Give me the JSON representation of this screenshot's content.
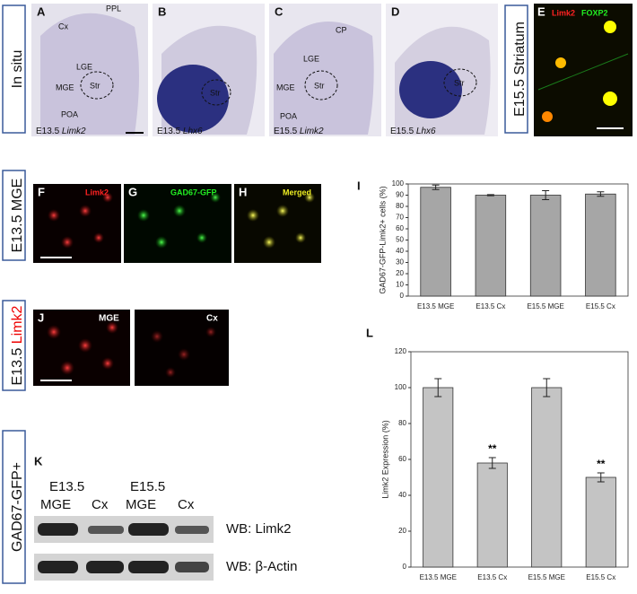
{
  "row_labels": {
    "in_situ": "In situ",
    "striatum": "E15.5 Striatum",
    "mge": "E13.5 MGE",
    "limk2_stage": "E13.5",
    "limk2_gene": "Limk2",
    "gfp": "GAD67-GFP+"
  },
  "panels": {
    "A": {
      "letter": "A",
      "labels": [
        "Cx",
        "PPL",
        "LGE",
        "MGE",
        "Str",
        "POA"
      ],
      "stage": "E13.5",
      "gene": "Limk2"
    },
    "B": {
      "letter": "B",
      "labels": [
        "Str"
      ],
      "stage": "E13.5",
      "gene": "Lhx6"
    },
    "C": {
      "letter": "C",
      "labels": [
        "CP",
        "LGE",
        "MGE",
        "Str",
        "POA"
      ],
      "stage": "E15.5",
      "gene": "Limk2"
    },
    "D": {
      "letter": "D",
      "labels": [
        "Str"
      ],
      "stage": "E15.5",
      "gene": "Lhx6"
    },
    "E": {
      "letter": "E",
      "labels": [
        "Limk2",
        "FOXP2"
      ]
    },
    "F": {
      "letter": "F",
      "labels": [
        "Limk2"
      ]
    },
    "G": {
      "letter": "G",
      "labels": [
        "GAD67-GFP"
      ]
    },
    "H": {
      "letter": "H",
      "labels": [
        "Merged"
      ]
    },
    "I": {
      "letter": "I"
    },
    "J": {
      "letter": "J",
      "labels": [
        "MGE",
        "Cx"
      ]
    },
    "K": {
      "letter": "K",
      "stages": [
        "E13.5",
        "E15.5"
      ],
      "lanes": [
        "MGE",
        "Cx",
        "MGE",
        "Cx"
      ],
      "blots": [
        "WB: Limk2",
        "WB: β-Actin"
      ]
    },
    "L": {
      "letter": "L"
    }
  },
  "chart_data": [
    {
      "type": "bar",
      "y_label": "GAD67-GFP-Limk2+ cells (%)",
      "categories": [
        "E13.5 MGE",
        "E13.5 Cx",
        "E15.5 MGE",
        "E15.5 Cx"
      ],
      "values": [
        97,
        90,
        90,
        91
      ],
      "errors": [
        2,
        0.5,
        4,
        2
      ],
      "color": "#a6a6a6",
      "ylim": [
        0,
        100
      ],
      "yticks": [
        0,
        10,
        20,
        30,
        40,
        50,
        60,
        70,
        80,
        90,
        100
      ]
    },
    {
      "type": "bar",
      "y_label": "Limk2 Expression (%)",
      "categories": [
        "E13.5 MGE",
        "E13.5 Cx",
        "E15.5 MGE",
        "E15.5 Cx"
      ],
      "values": [
        100,
        58,
        100,
        50
      ],
      "errors": [
        5,
        3,
        5,
        2.5
      ],
      "significance": [
        null,
        "**",
        null,
        "**"
      ],
      "color": "#c4c4c4",
      "ylim": [
        0,
        120
      ],
      "yticks": [
        0,
        20,
        40,
        60,
        80,
        100,
        120
      ]
    }
  ]
}
